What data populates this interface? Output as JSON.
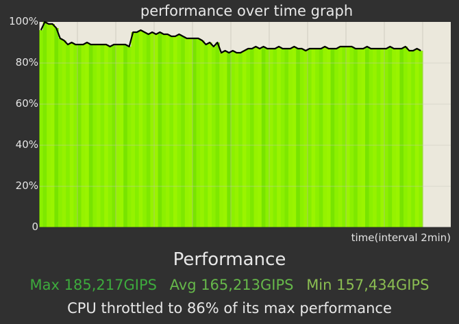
{
  "chart_data": {
    "type": "area",
    "title": "performance over time graph",
    "xlabel": "time(interval 2min)",
    "ylabel": "",
    "ylim": [
      0,
      100
    ],
    "yticks": [
      "0",
      "20%",
      "40%",
      "60%",
      "80%",
      "100%"
    ],
    "x": [
      0,
      1,
      2,
      3,
      4,
      5,
      6,
      7,
      8,
      9,
      10,
      11,
      12,
      13,
      14,
      15,
      16,
      17,
      18,
      19,
      20,
      21,
      22,
      23,
      24,
      25,
      26,
      27,
      28,
      29,
      30,
      31,
      32,
      33,
      34,
      35,
      36,
      37,
      38,
      39,
      40,
      41,
      42,
      43,
      44,
      45,
      46,
      47,
      48,
      49,
      50,
      51,
      52,
      53,
      54,
      55,
      56,
      57,
      58,
      59,
      60,
      61,
      62,
      63,
      64,
      65,
      66,
      67,
      68,
      69,
      70,
      71,
      72,
      73,
      74,
      75,
      76,
      77,
      78,
      79,
      80,
      81,
      82,
      83,
      84,
      85,
      86,
      87,
      88,
      89,
      90,
      91,
      92,
      93,
      94,
      95,
      96,
      97,
      98,
      99
    ],
    "series": [
      {
        "values": [
          96,
          100,
          99,
          99,
          97,
          92,
          91,
          89,
          90,
          89,
          89,
          89,
          90,
          89,
          89,
          89,
          89,
          89,
          88,
          89,
          89,
          89,
          89,
          88,
          95,
          95,
          96,
          95,
          94,
          95,
          94,
          95,
          94,
          94,
          93,
          93,
          94,
          93,
          92,
          92,
          92,
          92,
          91,
          89,
          90,
          88,
          90,
          85,
          86,
          85,
          86,
          85,
          85,
          86,
          87,
          87,
          88,
          87,
          88,
          87,
          87,
          87,
          88,
          87,
          87,
          87,
          88,
          87,
          87,
          86,
          87,
          87,
          87,
          87,
          88,
          87,
          87,
          87,
          88,
          88,
          88,
          88,
          87,
          87,
          87,
          88,
          87,
          87,
          87,
          87,
          87,
          88,
          87,
          87,
          87,
          88,
          86,
          86,
          87,
          86
        ]
      }
    ]
  },
  "performance_label": "Performance",
  "stats": {
    "max": "Max 185,217GIPS",
    "avg": "Avg 165,213GIPS",
    "min": "Min 157,434GIPS"
  },
  "throttle_text": "CPU throttled to 86% of its max performance",
  "colors": {
    "page_background": "#303030",
    "plot_background": "#ebe8dc",
    "area_fill": "#8cf000",
    "line": "#000000",
    "stats_max": "#3daa3d",
    "stats_avg": "#66b84a",
    "stats_min": "#8bbe52"
  }
}
